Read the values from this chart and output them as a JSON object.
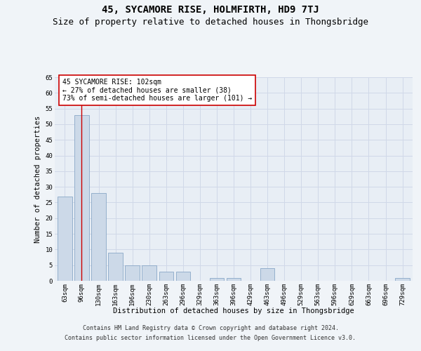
{
  "title": "45, SYCAMORE RISE, HOLMFIRTH, HD9 7TJ",
  "subtitle": "Size of property relative to detached houses in Thongsbridge",
  "xlabel": "Distribution of detached houses by size in Thongsbridge",
  "ylabel": "Number of detached properties",
  "footer_line1": "Contains HM Land Registry data © Crown copyright and database right 2024.",
  "footer_line2": "Contains public sector information licensed under the Open Government Licence v3.0.",
  "categories": [
    "63sqm",
    "96sqm",
    "130sqm",
    "163sqm",
    "196sqm",
    "230sqm",
    "263sqm",
    "296sqm",
    "329sqm",
    "363sqm",
    "396sqm",
    "429sqm",
    "463sqm",
    "496sqm",
    "529sqm",
    "563sqm",
    "596sqm",
    "629sqm",
    "663sqm",
    "696sqm",
    "729sqm"
  ],
  "values": [
    27,
    53,
    28,
    9,
    5,
    5,
    3,
    3,
    0,
    1,
    1,
    0,
    4,
    0,
    0,
    0,
    0,
    0,
    0,
    0,
    1
  ],
  "bar_color": "#ccd9e8",
  "bar_edge_color": "#7a9cbf",
  "highlight_bar_index": 1,
  "highlight_line_color": "#cc0000",
  "annotation_text": "45 SYCAMORE RISE: 102sqm\n← 27% of detached houses are smaller (38)\n73% of semi-detached houses are larger (101) →",
  "annotation_box_color": "#ffffff",
  "annotation_box_edge": "#cc0000",
  "ylim": [
    0,
    65
  ],
  "yticks": [
    0,
    5,
    10,
    15,
    20,
    25,
    30,
    35,
    40,
    45,
    50,
    55,
    60,
    65
  ],
  "grid_color": "#d0d8e8",
  "bg_color": "#e8eef5",
  "fig_bg_color": "#f0f4f8",
  "title_fontsize": 10,
  "subtitle_fontsize": 9,
  "axis_label_fontsize": 7.5,
  "tick_fontsize": 6.5,
  "footer_fontsize": 6,
  "annotation_fontsize": 7
}
